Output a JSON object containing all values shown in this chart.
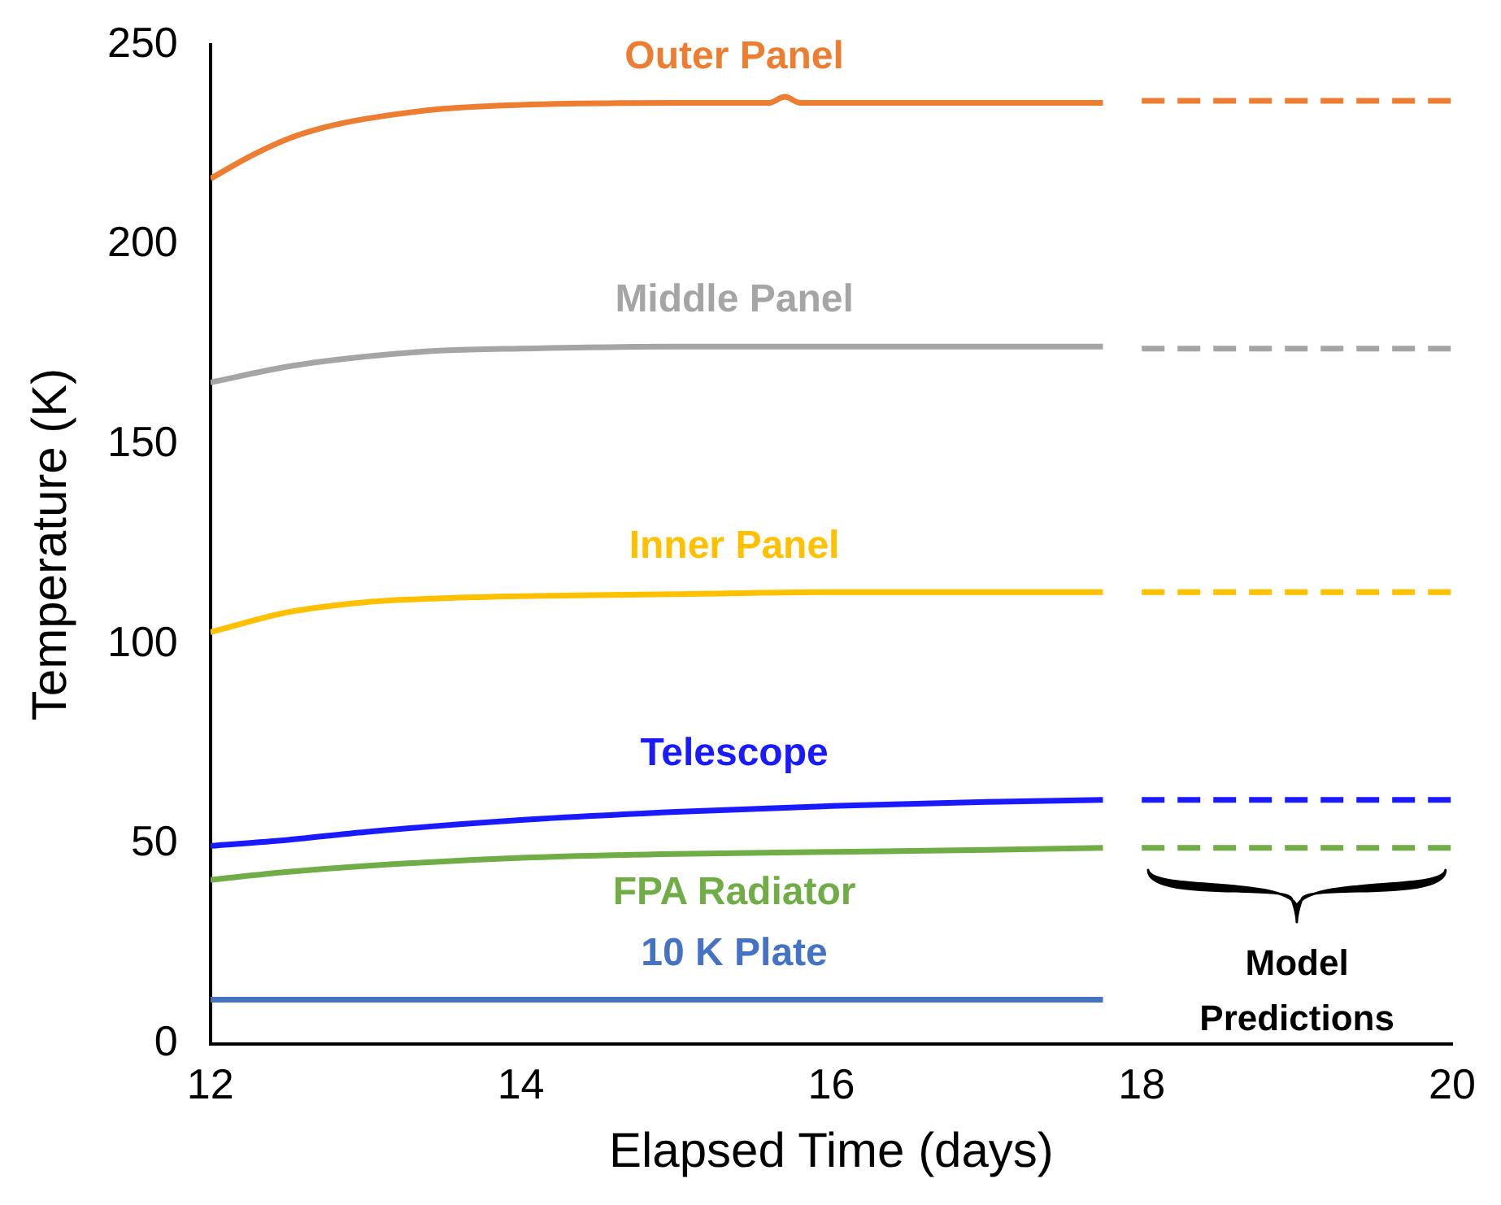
{
  "chart_data": {
    "type": "line",
    "xlabel": "Elapsed Time (days)",
    "ylabel": "Temperature (K)",
    "xlim": [
      12,
      20
    ],
    "xticks": [
      12,
      14,
      16,
      18,
      20
    ],
    "ylim": [
      0,
      250
    ],
    "yticks": [
      0,
      50,
      100,
      150,
      200,
      250
    ],
    "grid": false,
    "legend": false,
    "marker": "none",
    "annotations": [
      "Model Predictions"
    ],
    "series": [
      {
        "name": "Outer Panel",
        "color": "#ed7d31",
        "line_style": "solid",
        "x": [
          12,
          12.25,
          12.5,
          12.75,
          13,
          13.5,
          14,
          15,
          15.6,
          15.7,
          15.8,
          16.5,
          17.75
        ],
        "values": [
          216.5,
          222,
          226.5,
          229.5,
          231.5,
          234,
          235,
          235.5,
          235.5,
          237,
          235.5,
          235.5,
          235.5
        ]
      },
      {
        "name": "Middle Panel",
        "color": "#a5a5a5",
        "line_style": "solid",
        "x": [
          12,
          12.5,
          13,
          13.5,
          14,
          15,
          16,
          17.75
        ],
        "values": [
          165.5,
          169.5,
          172,
          173.5,
          174,
          174.5,
          174.5,
          174.5
        ]
      },
      {
        "name": "Inner Panel",
        "color": "#ffc000",
        "line_style": "solid",
        "x": [
          12,
          12.5,
          13,
          13.5,
          14,
          15,
          16,
          17.75
        ],
        "values": [
          103,
          108,
          110.5,
          111.5,
          112,
          112.5,
          113,
          113
        ]
      },
      {
        "name": "Telescope",
        "color": "#1a1aff",
        "line_style": "solid",
        "x": [
          12,
          12.5,
          13,
          14,
          15,
          16,
          17,
          17.75
        ],
        "values": [
          49.5,
          51,
          53,
          56,
          58,
          59.5,
          60.5,
          61
        ]
      },
      {
        "name": "FPA Radiator",
        "color": "#70ad47",
        "line_style": "solid",
        "x": [
          12,
          12.5,
          13,
          14,
          15,
          16,
          17,
          17.75
        ],
        "values": [
          41,
          43,
          44.5,
          46.5,
          47.5,
          48,
          48.5,
          49
        ]
      },
      {
        "name": "10 K Plate",
        "color": "#4472c4",
        "line_style": "solid",
        "x": [
          12,
          17.75
        ],
        "values": [
          11,
          11
        ]
      },
      {
        "color": "#ed7d31",
        "line_style": "dashed",
        "x": [
          18,
          20
        ],
        "values": [
          236,
          236
        ]
      },
      {
        "color": "#a5a5a5",
        "line_style": "dashed",
        "x": [
          18,
          20
        ],
        "values": [
          174,
          174
        ]
      },
      {
        "color": "#ffc000",
        "line_style": "dashed",
        "x": [
          18,
          20
        ],
        "values": [
          113,
          113
        ]
      },
      {
        "color": "#1a1aff",
        "line_style": "dashed",
        "x": [
          18,
          20
        ],
        "values": [
          61,
          61
        ]
      },
      {
        "color": "#70ad47",
        "line_style": "dashed",
        "x": [
          18,
          20
        ],
        "values": [
          49,
          49
        ]
      }
    ]
  }
}
